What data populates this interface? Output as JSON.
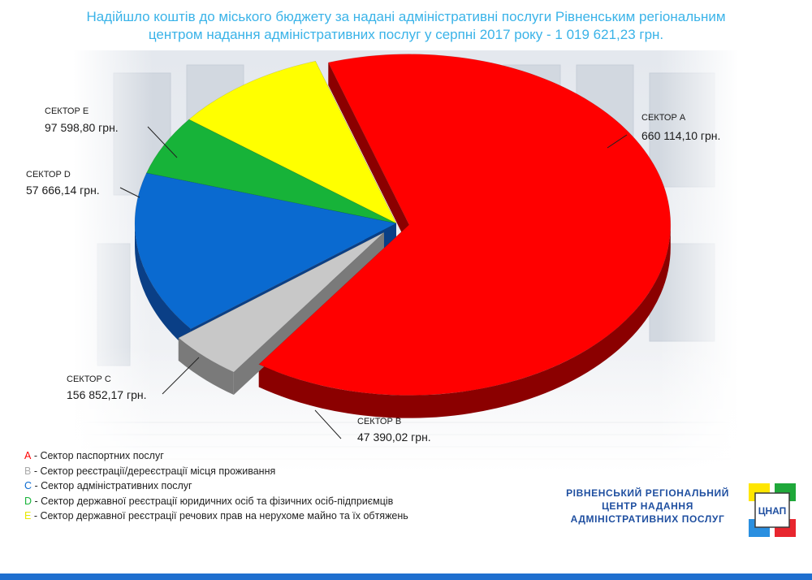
{
  "title_line1": "Надійшло коштів до міського бюджету за надані адміністративні послуги Рівненським регіональним",
  "title_line2": "центром надання адміністративних послуг у серпні 2017 року - 1 019 621,23 грн.",
  "chart_data": {
    "type": "pie",
    "title": "Надійшло коштів до міського бюджету за надані адміністративні послуги Рівненським регіональним центром надання адміністративних послуг у серпні 2017 року - 1 019 621,23 грн.",
    "total_label": "1 019 621,23 грн.",
    "slices": [
      {
        "key": "A",
        "name": "СЕКТОР А",
        "value": 660114.1,
        "label": "660 114,10 грн.",
        "color": "#ff0000",
        "side": "#8b0000"
      },
      {
        "key": "B",
        "name": "СЕКТОР В",
        "value": 47390.02,
        "label": "47 390,02 грн.",
        "color": "#c8c8c8",
        "side": "#7a7a7a"
      },
      {
        "key": "C",
        "name": "СЕКТОР С",
        "value": 156852.17,
        "label": "156 852,17 грн.",
        "color": "#0a6ad0",
        "side": "#0a3f86"
      },
      {
        "key": "D",
        "name": "СЕКТОР D",
        "value": 57666.14,
        "label": "57 666,14 грн.",
        "color": "#17b339",
        "side": "#0d6b20"
      },
      {
        "key": "E",
        "name": "СЕКТОР Е",
        "value": 97598.8,
        "label": "97 598,80 грн.",
        "color": "#ffff00",
        "side": "#9a9a00"
      }
    ]
  },
  "legend": [
    {
      "letter": "А",
      "text": " - Сектор паспортних послуг",
      "color": "#ff0000"
    },
    {
      "letter": "В",
      "text": " - Сектор реєстрації/дереєстрації місця проживання",
      "color": "#aaaaaa"
    },
    {
      "letter": "С",
      "text": " - Сектор адміністративних послуг",
      "color": "#0a6ad0"
    },
    {
      "letter": "D",
      "text": " - Сектор державної реєстрації юридичних осіб та фізичних осіб-підприємців",
      "color": "#17b339"
    },
    {
      "letter": "Е",
      "text": " - Сектор державної реєстрації речових прав на нерухоме майно та їх обтяжень",
      "color": "#e8e800"
    }
  ],
  "org": {
    "line1": "РІВНЕНСЬКИЙ РЕГІОНАЛЬНИЙ",
    "line2": "ЦЕНТР НАДАННЯ",
    "line3": "АДМІНІСТРАТИВНИХ ПОСЛУГ",
    "logo_text": "ЦНАП"
  },
  "colors": {
    "title": "#3ab3e8",
    "org": "#1f4fa0",
    "bar": "#1f6fcf"
  }
}
